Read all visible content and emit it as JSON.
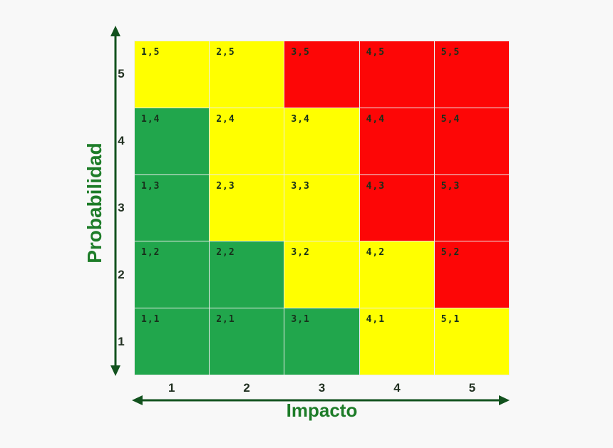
{
  "background": "#f8f8f8",
  "colors": {
    "green": "#21a64c",
    "yellow": "#ffff00",
    "red": "#fd0606",
    "cell_text": "#17301b",
    "tick_text": "#223122",
    "axis_title": "#1d7c28",
    "arrow": "#12521e",
    "grid_line": "#ececec"
  },
  "y_axis": {
    "title": "Probabilidad",
    "ticks": [
      "5",
      "4",
      "3",
      "2",
      "1"
    ]
  },
  "x_axis": {
    "title": "Impacto",
    "ticks": [
      "1",
      "2",
      "3",
      "4",
      "5"
    ]
  },
  "chart_data": {
    "type": "heatmap",
    "title": "",
    "xlabel": "Impacto",
    "ylabel": "Probabilidad",
    "x_categories": [
      "1",
      "2",
      "3",
      "4",
      "5"
    ],
    "y_categories": [
      "5",
      "4",
      "3",
      "2",
      "1"
    ],
    "grid": true,
    "legend": "none",
    "rows": [
      {
        "y": "5",
        "cells": [
          {
            "label": "1,5",
            "color": "yellow"
          },
          {
            "label": "2,5",
            "color": "yellow"
          },
          {
            "label": "3,5",
            "color": "red"
          },
          {
            "label": "4,5",
            "color": "red"
          },
          {
            "label": "5,5",
            "color": "red"
          }
        ]
      },
      {
        "y": "4",
        "cells": [
          {
            "label": "1,4",
            "color": "green"
          },
          {
            "label": "2,4",
            "color": "yellow"
          },
          {
            "label": "3,4",
            "color": "yellow"
          },
          {
            "label": "4,4",
            "color": "red"
          },
          {
            "label": "5,4",
            "color": "red"
          }
        ]
      },
      {
        "y": "3",
        "cells": [
          {
            "label": "1,3",
            "color": "green"
          },
          {
            "label": "2,3",
            "color": "yellow"
          },
          {
            "label": "3,3",
            "color": "yellow"
          },
          {
            "label": "4,3",
            "color": "red"
          },
          {
            "label": "5,3",
            "color": "red"
          }
        ]
      },
      {
        "y": "2",
        "cells": [
          {
            "label": "1,2",
            "color": "green"
          },
          {
            "label": "2,2",
            "color": "green"
          },
          {
            "label": "3,2",
            "color": "yellow"
          },
          {
            "label": "4,2",
            "color": "yellow"
          },
          {
            "label": "5,2",
            "color": "red"
          }
        ]
      },
      {
        "y": "1",
        "cells": [
          {
            "label": "1,1",
            "color": "green"
          },
          {
            "label": "2,1",
            "color": "green"
          },
          {
            "label": "3,1",
            "color": "green"
          },
          {
            "label": "4,1",
            "color": "yellow"
          },
          {
            "label": "5,1",
            "color": "yellow"
          }
        ]
      }
    ]
  }
}
